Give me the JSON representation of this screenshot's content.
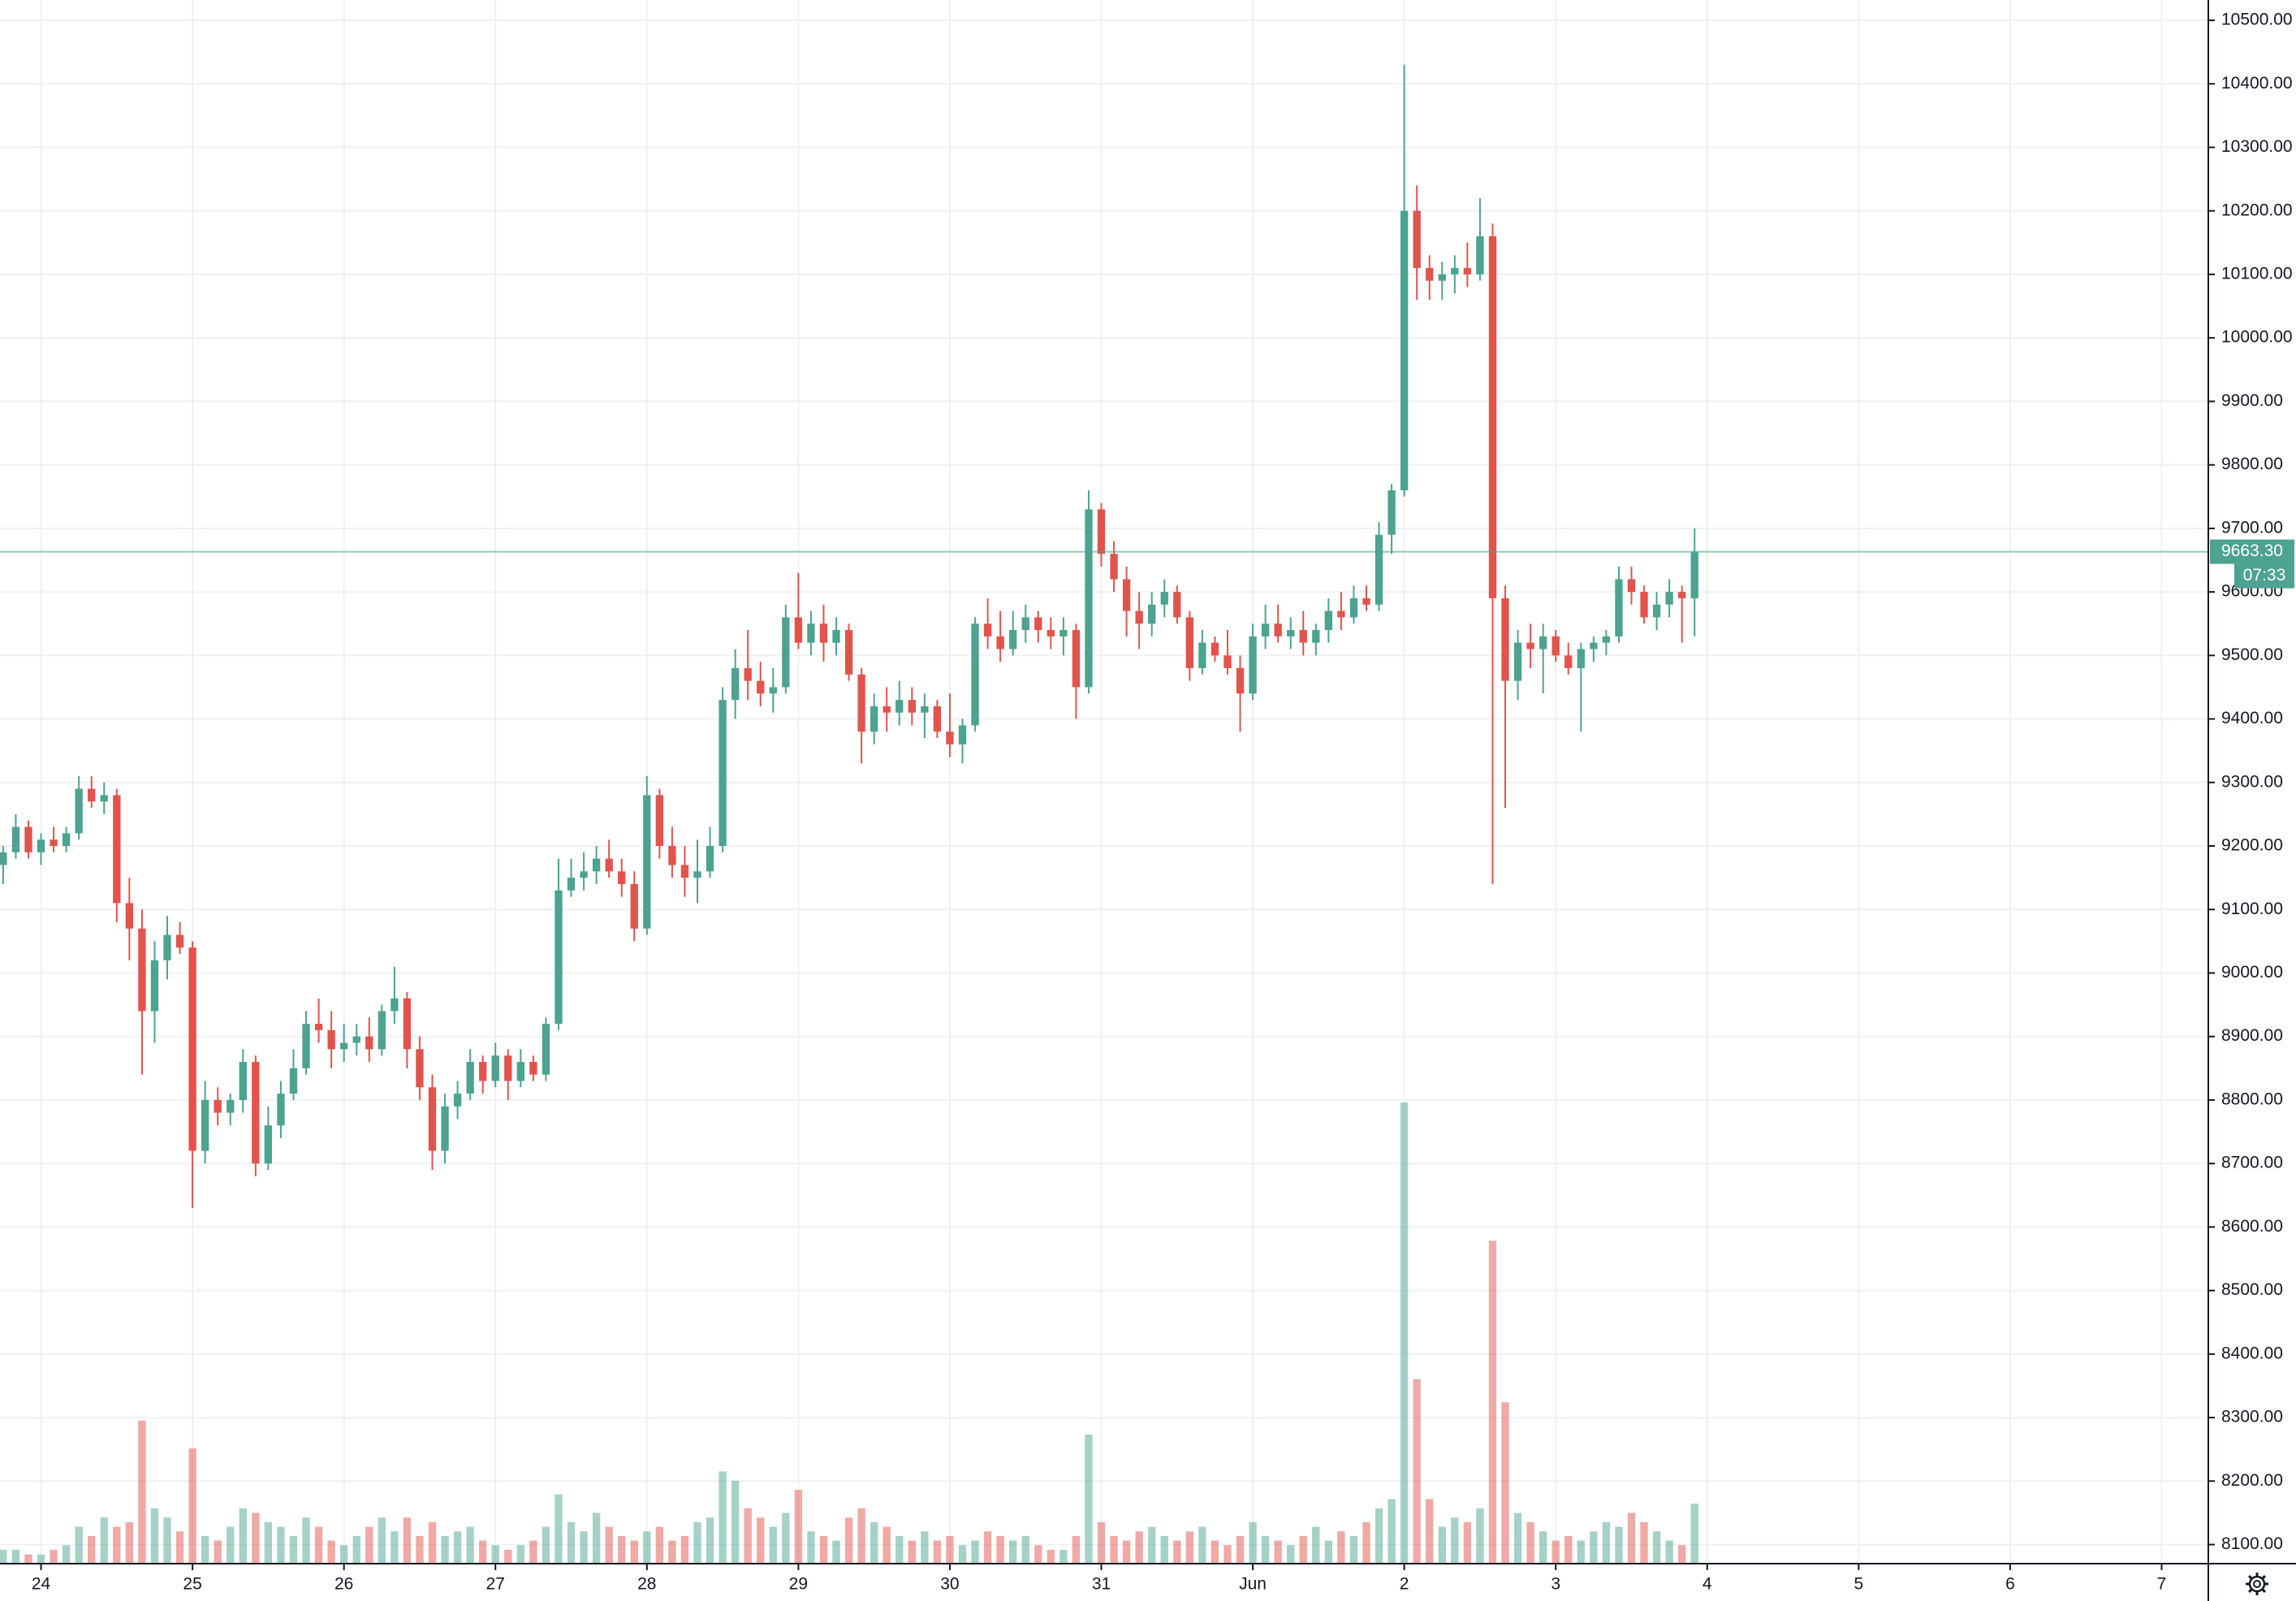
{
  "chart_data": {
    "type": "candlestick",
    "up_color": "#4ca38f",
    "down_color": "#e2534c",
    "grid": true,
    "x": [
      -3,
      -2,
      -1,
      0,
      1,
      2,
      3,
      4,
      5,
      6,
      7,
      8,
      9,
      10,
      11,
      12,
      13,
      14,
      15,
      16,
      17,
      18,
      19,
      20,
      21,
      22,
      23,
      24,
      25,
      26,
      27,
      28,
      29,
      30,
      31,
      32,
      33,
      34,
      35,
      36,
      37,
      38,
      39,
      40,
      41,
      42,
      43,
      44,
      45,
      46,
      47,
      48,
      49,
      50,
      51,
      52,
      53,
      54,
      55,
      56,
      57,
      58,
      59,
      60,
      61,
      62,
      63,
      64,
      65,
      66,
      67,
      68,
      69,
      70,
      71,
      72,
      73,
      74,
      75,
      76,
      77,
      78,
      79,
      80,
      81,
      82,
      83,
      84,
      85,
      86,
      87,
      88,
      89,
      90,
      91,
      92,
      93,
      94,
      95,
      96,
      97,
      98,
      99,
      100,
      101,
      102,
      103,
      104,
      105,
      106,
      107,
      108,
      109,
      110,
      111,
      112,
      113,
      114,
      115,
      116,
      117,
      118,
      119,
      120,
      121,
      122,
      123,
      124,
      125,
      126,
      127,
      128,
      129,
      130,
      131
    ],
    "open": [
      9170,
      9190,
      9230,
      9190,
      9210,
      9200,
      9220,
      9290,
      9270,
      9280,
      9110,
      9070,
      8940,
      9020,
      9060,
      9040,
      8720,
      8800,
      8780,
      8800,
      8860,
      8700,
      8760,
      8810,
      8850,
      8920,
      8910,
      8880,
      8890,
      8900,
      8880,
      8940,
      8960,
      8880,
      8820,
      8720,
      8790,
      8810,
      8860,
      8830,
      8870,
      8830,
      8860,
      8840,
      8920,
      9130,
      9150,
      9160,
      9180,
      9160,
      9140,
      9070,
      9280,
      9200,
      9170,
      9150,
      9160,
      9200,
      9430,
      9480,
      9460,
      9440,
      9450,
      9560,
      9520,
      9550,
      9520,
      9540,
      9470,
      9380,
      9420,
      9410,
      9430,
      9410,
      9420,
      9380,
      9360,
      9390,
      9550,
      9530,
      9510,
      9540,
      9560,
      9540,
      9530,
      9540,
      9450,
      9730,
      9660,
      9620,
      9570,
      9550,
      9580,
      9600,
      9560,
      9480,
      9520,
      9500,
      9480,
      9440,
      9530,
      9550,
      9530,
      9540,
      9520,
      9540,
      9570,
      9560,
      9590,
      9580,
      9690,
      9760,
      10200,
      10110,
      10090,
      10100,
      10110,
      10100,
      10160,
      9590,
      9460,
      9520,
      9510,
      9530,
      9500,
      9480,
      9510,
      9520,
      9530,
      9620,
      9600,
      9560,
      9580,
      9600,
      9590
    ],
    "high": [
      9200,
      9250,
      9240,
      9220,
      9230,
      9230,
      9310,
      9310,
      9300,
      9290,
      9150,
      9100,
      9050,
      9090,
      9080,
      9050,
      8830,
      8820,
      8810,
      8880,
      8870,
      8790,
      8830,
      8880,
      8940,
      8960,
      8940,
      8920,
      8920,
      8930,
      8950,
      9010,
      8970,
      8900,
      8840,
      8810,
      8830,
      8880,
      8870,
      8890,
      8880,
      8880,
      8870,
      8930,
      9180,
      9180,
      9190,
      9200,
      9210,
      9180,
      9160,
      9310,
      9290,
      9230,
      9200,
      9210,
      9230,
      9450,
      9510,
      9540,
      9490,
      9480,
      9580,
      9630,
      9570,
      9580,
      9560,
      9550,
      9480,
      9440,
      9450,
      9460,
      9450,
      9440,
      9430,
      9440,
      9400,
      9560,
      9590,
      9570,
      9570,
      9580,
      9570,
      9560,
      9560,
      9550,
      9760,
      9740,
      9680,
      9640,
      9600,
      9600,
      9620,
      9610,
      9570,
      9540,
      9530,
      9540,
      9500,
      9550,
      9580,
      9580,
      9560,
      9570,
      9550,
      9590,
      9600,
      9610,
      9610,
      9710,
      9770,
      10430,
      10240,
      10130,
      10120,
      10130,
      10150,
      10220,
      10180,
      9610,
      9540,
      9550,
      9550,
      9540,
      9520,
      9520,
      9530,
      9540,
      9640,
      9640,
      9610,
      9600,
      9620,
      9610,
      9700
    ],
    "low": [
      9140,
      9180,
      9180,
      9170,
      9190,
      9190,
      9210,
      9260,
      9250,
      9080,
      9020,
      8840,
      8890,
      8990,
      9030,
      8630,
      8700,
      8760,
      8760,
      8780,
      8680,
      8690,
      8740,
      8800,
      8840,
      8890,
      8850,
      8860,
      8870,
      8860,
      8870,
      8920,
      8850,
      8800,
      8690,
      8700,
      8770,
      8800,
      8810,
      8820,
      8800,
      8820,
      8830,
      8830,
      8910,
      9120,
      9130,
      9140,
      9150,
      9120,
      9050,
      9060,
      9180,
      9150,
      9120,
      9110,
      9150,
      9190,
      9400,
      9430,
      9420,
      9410,
      9440,
      9510,
      9500,
      9490,
      9500,
      9460,
      9330,
      9360,
      9380,
      9390,
      9390,
      9370,
      9370,
      9340,
      9330,
      9380,
      9510,
      9490,
      9500,
      9520,
      9520,
      9510,
      9500,
      9400,
      9440,
      9640,
      9600,
      9530,
      9510,
      9530,
      9560,
      9550,
      9460,
      9470,
      9490,
      9470,
      9380,
      9430,
      9510,
      9520,
      9510,
      9500,
      9500,
      9520,
      9540,
      9550,
      9570,
      9570,
      9660,
      9750,
      10060,
      10060,
      10060,
      10070,
      10080,
      10090,
      9140,
      9260,
      9430,
      9480,
      9440,
      9490,
      9470,
      9380,
      9490,
      9500,
      9520,
      9580,
      9550,
      9540,
      9560,
      9520,
      9530
    ],
    "close": [
      9190,
      9230,
      9190,
      9210,
      9200,
      9220,
      9290,
      9270,
      9280,
      9110,
      9070,
      8940,
      9020,
      9060,
      9040,
      8720,
      8800,
      8780,
      8800,
      8860,
      8700,
      8760,
      8810,
      8850,
      8920,
      8910,
      8880,
      8890,
      8900,
      8880,
      8940,
      8960,
      8880,
      8820,
      8720,
      8790,
      8810,
      8860,
      8830,
      8870,
      8830,
      8860,
      8840,
      8920,
      9130,
      9150,
      9160,
      9180,
      9160,
      9140,
      9070,
      9280,
      9200,
      9170,
      9150,
      9160,
      9200,
      9430,
      9480,
      9460,
      9440,
      9450,
      9560,
      9520,
      9550,
      9520,
      9540,
      9470,
      9380,
      9420,
      9410,
      9430,
      9410,
      9420,
      9380,
      9360,
      9390,
      9550,
      9530,
      9510,
      9540,
      9560,
      9540,
      9530,
      9540,
      9450,
      9730,
      9660,
      9620,
      9570,
      9550,
      9580,
      9600,
      9560,
      9480,
      9520,
      9500,
      9480,
      9440,
      9530,
      9550,
      9530,
      9540,
      9520,
      9540,
      9570,
      9560,
      9590,
      9580,
      9690,
      9760,
      10200,
      10110,
      10090,
      10100,
      10110,
      10100,
      10160,
      9590,
      9460,
      9520,
      9510,
      9530,
      9500,
      9480,
      9510,
      9520,
      9530,
      9620,
      9600,
      9560,
      9580,
      9600,
      9590,
      9663.3
    ],
    "volume": [
      3,
      3,
      2,
      2,
      3,
      4,
      8,
      6,
      10,
      8,
      9,
      31,
      12,
      10,
      7,
      25,
      6,
      5,
      8,
      12,
      11,
      9,
      8,
      6,
      10,
      8,
      5,
      4,
      6,
      8,
      10,
      7,
      10,
      6,
      9,
      6,
      7,
      8,
      5,
      4,
      3,
      4,
      5,
      8,
      15,
      9,
      7,
      11,
      8,
      6,
      5,
      7,
      8,
      5,
      6,
      9,
      10,
      20,
      18,
      12,
      10,
      8,
      11,
      16,
      7,
      6,
      5,
      10,
      12,
      9,
      8,
      6,
      5,
      7,
      5,
      6,
      4,
      5,
      7,
      6,
      5,
      6,
      4,
      3,
      3,
      6,
      28,
      9,
      6,
      5,
      7,
      8,
      6,
      5,
      7,
      8,
      5,
      4,
      6,
      9,
      6,
      5,
      4,
      6,
      8,
      5,
      7,
      6,
      9,
      12,
      14,
      100,
      40,
      14,
      8,
      10,
      9,
      12,
      70,
      35,
      11,
      9,
      7,
      5,
      6,
      5,
      7,
      9,
      8,
      11,
      9,
      7,
      5,
      4,
      13
    ],
    "xlim": [
      -3.25,
      171.7
    ],
    "xticks": [
      {
        "value": 0,
        "label": "24"
      },
      {
        "value": 12,
        "label": "25"
      },
      {
        "value": 24,
        "label": "26"
      },
      {
        "value": 36,
        "label": "27"
      },
      {
        "value": 48,
        "label": "28"
      },
      {
        "value": 60,
        "label": "29"
      },
      {
        "value": 72,
        "label": "30"
      },
      {
        "value": 84,
        "label": "31"
      },
      {
        "value": 96,
        "label": "Jun"
      },
      {
        "value": 108,
        "label": "2"
      },
      {
        "value": 120,
        "label": "3"
      },
      {
        "value": 132,
        "label": "4"
      },
      {
        "value": 144,
        "label": "5"
      },
      {
        "value": 156,
        "label": "6"
      },
      {
        "value": 168,
        "label": "7"
      }
    ],
    "ylim": [
      8070,
      10532
    ],
    "yticks": [
      {
        "value": 8100,
        "label": "8100.00"
      },
      {
        "value": 8200,
        "label": "8200.00"
      },
      {
        "value": 8300,
        "label": "8300.00"
      },
      {
        "value": 8400,
        "label": "8400.00"
      },
      {
        "value": 8500,
        "label": "8500.00"
      },
      {
        "value": 8600,
        "label": "8600.00"
      },
      {
        "value": 8700,
        "label": "8700.00"
      },
      {
        "value": 8800,
        "label": "8800.00"
      },
      {
        "value": 8900,
        "label": "8900.00"
      },
      {
        "value": 9000,
        "label": "9000.00"
      },
      {
        "value": 9100,
        "label": "9100.00"
      },
      {
        "value": 9200,
        "label": "9200.00"
      },
      {
        "value": 9300,
        "label": "9300.00"
      },
      {
        "value": 9400,
        "label": "9400.00"
      },
      {
        "value": 9500,
        "label": "9500.00"
      },
      {
        "value": 9600,
        "label": "9600.00"
      },
      {
        "value": 9700,
        "label": "9700.00"
      },
      {
        "value": 9800,
        "label": "9800.00"
      },
      {
        "value": 9900,
        "label": "9900.00"
      },
      {
        "value": 10000,
        "label": "10000.00"
      },
      {
        "value": 10100,
        "label": "10100.00"
      },
      {
        "value": 10200,
        "label": "10200.00"
      },
      {
        "value": 10300,
        "label": "10300.00"
      },
      {
        "value": 10400,
        "label": "10400.00"
      },
      {
        "value": 10500,
        "label": "10500.00"
      }
    ],
    "last_price": {
      "value": 9663.3,
      "label": "9663.30"
    },
    "countdown": "07:33"
  }
}
